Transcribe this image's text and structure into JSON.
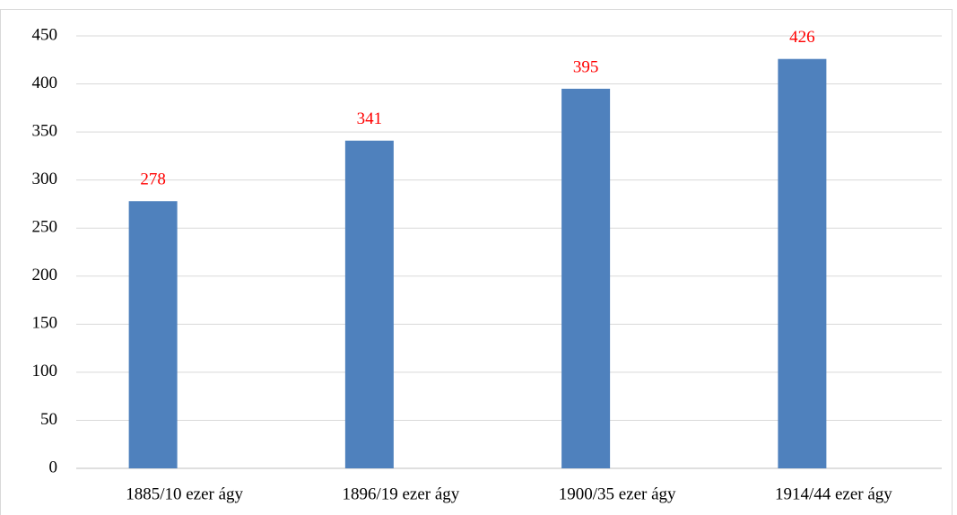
{
  "chart_data": {
    "type": "bar",
    "categories": [
      "1885/10 ezer ágy",
      "1896/19 ezer ágy",
      "1900/35 ezer ágy",
      "1914/44 ezer ágy"
    ],
    "values": [
      278,
      341,
      395,
      426
    ],
    "color": "#4f81bd",
    "label_color": "#ff0000",
    "ylim": [
      0,
      450
    ],
    "yticks": [
      0,
      50,
      100,
      150,
      200,
      250,
      300,
      350,
      400,
      450
    ],
    "grid": true
  }
}
